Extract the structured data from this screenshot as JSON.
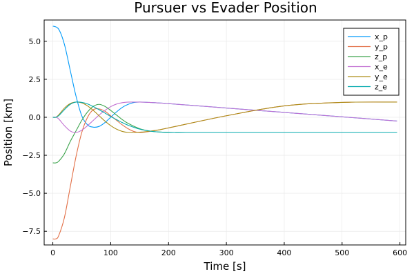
{
  "chart_data": {
    "type": "line",
    "title": "Pursuer vs Evader Position",
    "xlabel": "Time [s]",
    "ylabel": "Position [km]",
    "xlim": [
      -15,
      610
    ],
    "ylim": [
      -8.4,
      6.4
    ],
    "x_ticks": [
      0,
      100,
      200,
      300,
      400,
      500,
      600
    ],
    "y_ticks": [
      5.0,
      2.5,
      0.0,
      -2.5,
      -5.0,
      -7.5
    ],
    "x_tick_labels": [
      "0",
      "100",
      "200",
      "300",
      "400",
      "500",
      "600"
    ],
    "y_tick_labels": [
      "5.0",
      "2.5",
      "0.0",
      "−2.5",
      "−5.0",
      "−7.5"
    ],
    "grid": true,
    "legend_position": "top-right",
    "series": [
      {
        "name": "x_p",
        "color": "#009af9",
        "x": [
          0,
          10,
          20,
          30,
          40,
          50,
          60,
          70,
          80,
          90,
          100,
          110,
          120,
          130,
          140,
          150,
          160,
          170,
          180,
          200,
          300,
          400,
          500,
          595
        ],
        "y": [
          6.0,
          5.8,
          4.8,
          3.1,
          1.4,
          0.1,
          -0.5,
          -0.65,
          -0.6,
          -0.35,
          0.0,
          0.35,
          0.65,
          0.85,
          0.97,
          1.0,
          0.99,
          0.97,
          0.95,
          0.9,
          0.61,
          0.32,
          0.03,
          -0.25
        ]
      },
      {
        "name": "y_p",
        "color": "#e26f46",
        "x": [
          0,
          5,
          10,
          20,
          30,
          40,
          50,
          60,
          70,
          80,
          90,
          100,
          110,
          120,
          130,
          140,
          150,
          160,
          180,
          200,
          300,
          400,
          500,
          595
        ],
        "y": [
          -8.0,
          -8.0,
          -7.8,
          -6.6,
          -4.6,
          -2.6,
          -1.0,
          0.0,
          0.5,
          0.55,
          0.4,
          0.1,
          -0.2,
          -0.5,
          -0.75,
          -0.93,
          -1.0,
          -0.97,
          -0.85,
          -0.7,
          0.1,
          0.75,
          0.98,
          1.0
        ]
      },
      {
        "name": "z_p",
        "color": "#3da44d",
        "x": [
          0,
          5,
          10,
          20,
          30,
          40,
          50,
          60,
          70,
          80,
          90,
          100,
          110,
          120,
          130,
          150,
          170,
          190,
          210,
          230,
          300,
          400,
          500,
          595
        ],
        "y": [
          -3.0,
          -3.0,
          -2.9,
          -2.4,
          -1.6,
          -0.9,
          -0.2,
          0.35,
          0.72,
          0.85,
          0.72,
          0.45,
          0.15,
          -0.15,
          -0.4,
          -0.75,
          -0.92,
          -0.98,
          -1.0,
          -1.0,
          -1.0,
          -1.0,
          -1.0,
          -1.0
        ]
      },
      {
        "name": "x_e",
        "color": "#c271d2",
        "x": [
          0,
          5,
          10,
          20,
          30,
          40,
          50,
          60,
          70,
          80,
          90,
          100,
          110,
          120,
          130,
          140,
          150,
          160,
          170,
          180,
          200,
          300,
          400,
          500,
          595
        ],
        "y": [
          0.0,
          0.0,
          -0.1,
          -0.55,
          -0.9,
          -1.0,
          -0.85,
          -0.55,
          -0.2,
          0.15,
          0.45,
          0.7,
          0.87,
          0.96,
          1.0,
          1.0,
          1.0,
          0.99,
          0.97,
          0.95,
          0.9,
          0.61,
          0.32,
          0.03,
          -0.25
        ]
      },
      {
        "name": "y_e",
        "color": "#ac8d18",
        "x": [
          0,
          5,
          10,
          20,
          30,
          40,
          50,
          60,
          70,
          80,
          90,
          100,
          110,
          120,
          130,
          140,
          150,
          160,
          180,
          200,
          300,
          400,
          500,
          595
        ],
        "y": [
          0.0,
          0.0,
          0.15,
          0.6,
          0.9,
          1.0,
          0.95,
          0.75,
          0.45,
          0.1,
          -0.25,
          -0.55,
          -0.78,
          -0.93,
          -1.0,
          -1.0,
          -0.98,
          -0.95,
          -0.85,
          -0.7,
          0.1,
          0.75,
          0.98,
          1.0
        ]
      },
      {
        "name": "z_e",
        "color": "#00a9ad",
        "x": [
          0,
          5,
          10,
          20,
          30,
          40,
          50,
          60,
          70,
          80,
          90,
          100,
          110,
          120,
          130,
          150,
          170,
          190,
          210,
          230,
          300,
          400,
          500,
          595
        ],
        "y": [
          0.0,
          0.0,
          0.1,
          0.5,
          0.85,
          1.0,
          0.98,
          0.88,
          0.7,
          0.5,
          0.28,
          0.05,
          -0.15,
          -0.35,
          -0.52,
          -0.78,
          -0.92,
          -0.98,
          -1.0,
          -1.0,
          -1.0,
          -1.0,
          -1.0,
          -1.0
        ]
      }
    ]
  }
}
